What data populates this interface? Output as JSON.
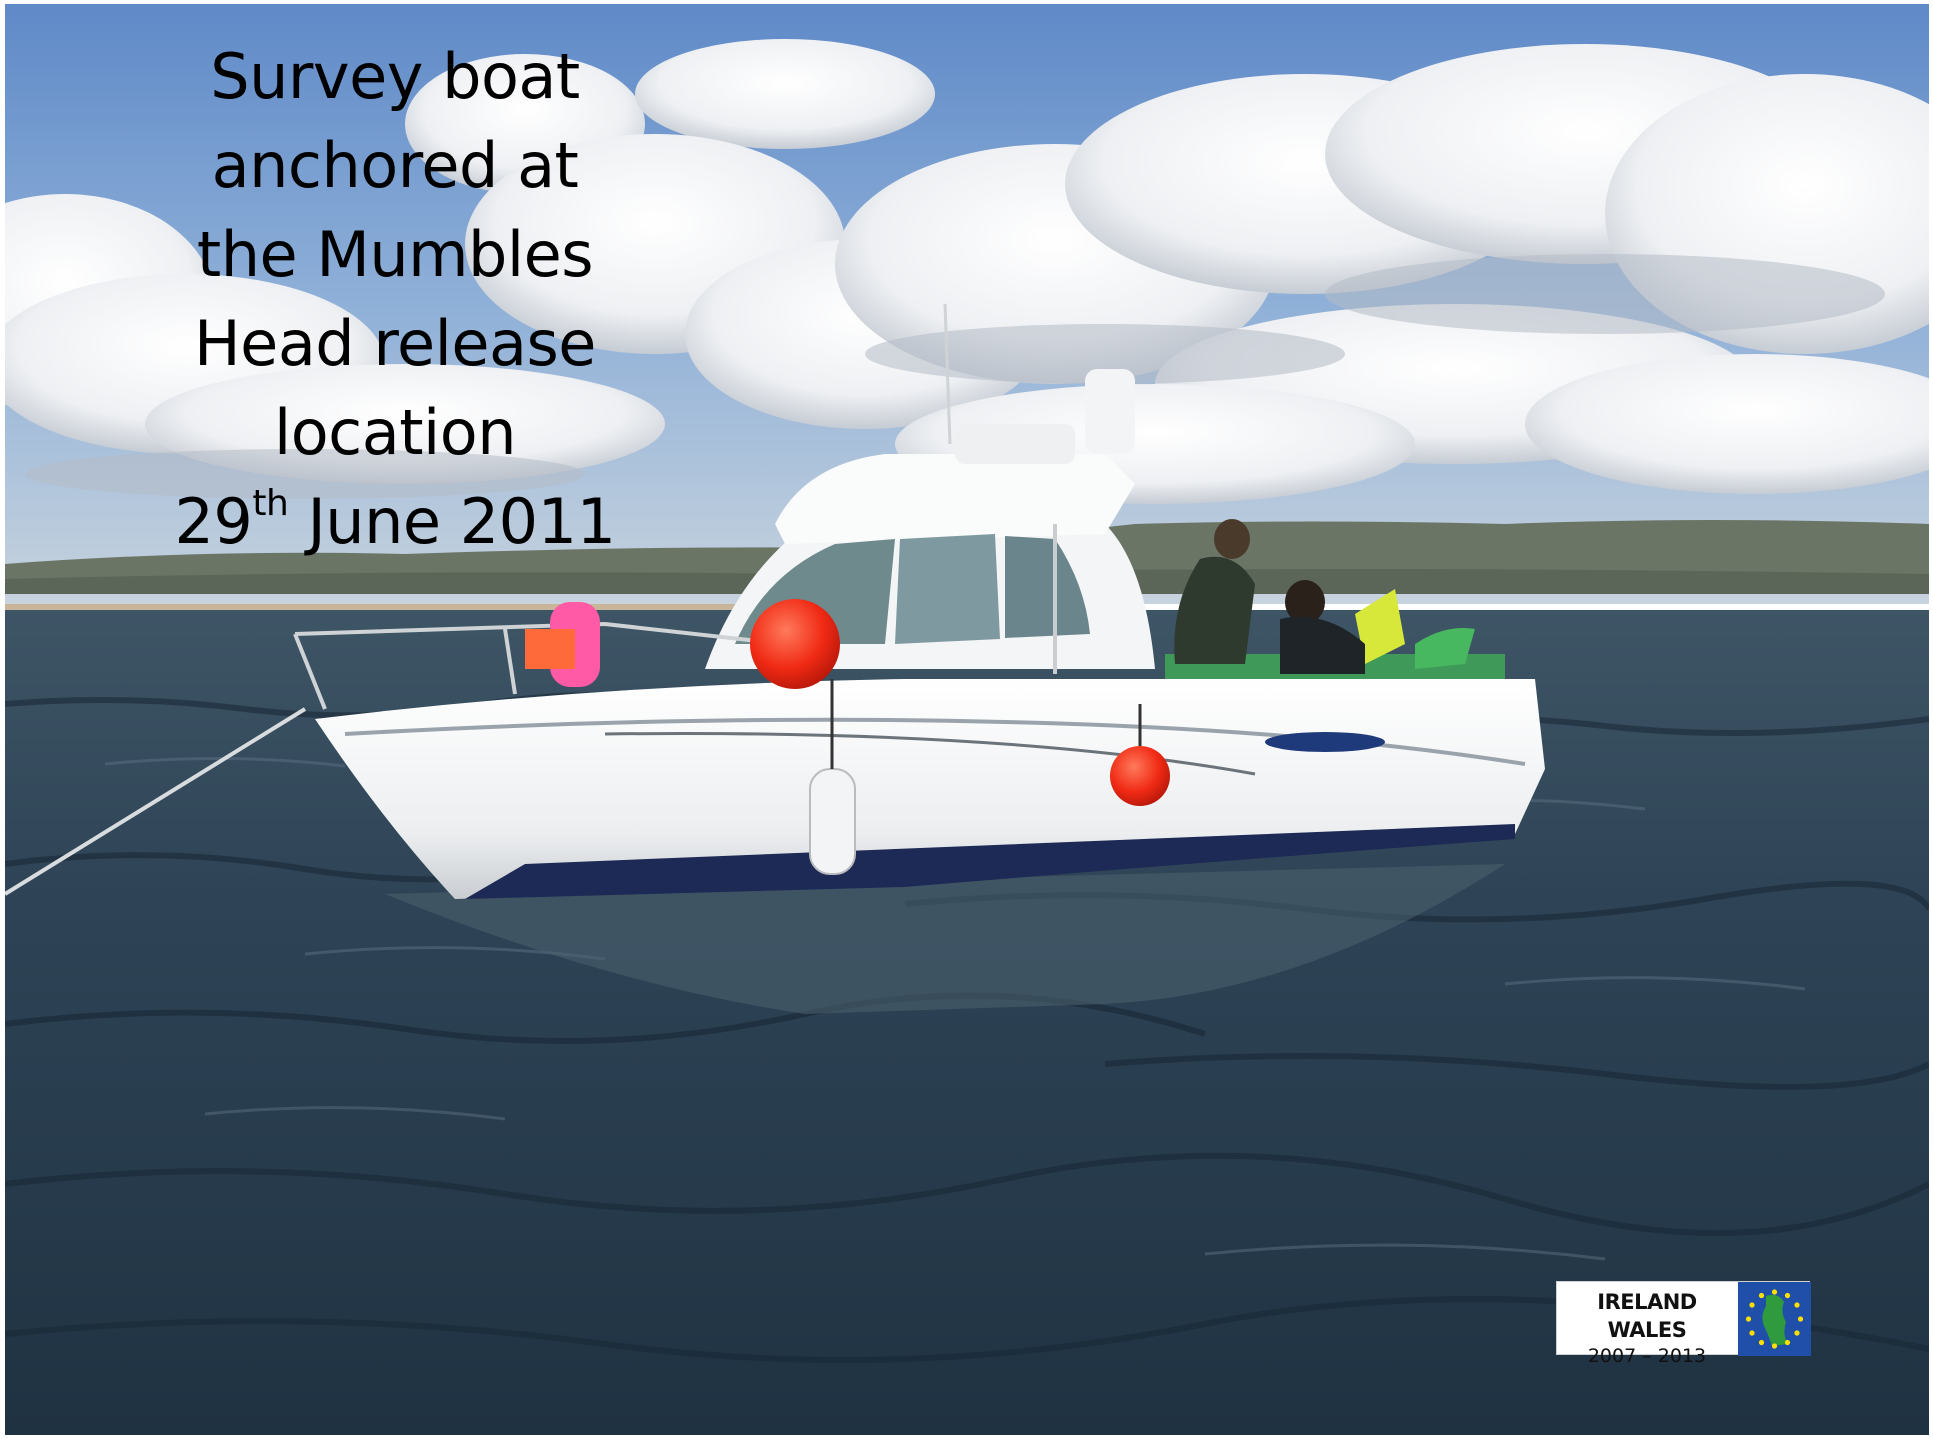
{
  "caption": {
    "line1": "Survey boat",
    "line2": "anchored at",
    "line3": "the Mumbles",
    "line4": "Head release",
    "line5": "location",
    "date_day": "29",
    "date_suffix": "th",
    "date_rest": " June 2011"
  },
  "logo": {
    "title": "IRELAND WALES",
    "years": "2007 – 2013",
    "flag_icon": "eu-flag-icon"
  },
  "photo": {
    "sky_color": "#6f9ad0",
    "cloud_color": "#f2f3f5",
    "sea_color": "#25394a",
    "hull_color": "#f4f5f6",
    "fender_color": "#f02a14"
  }
}
